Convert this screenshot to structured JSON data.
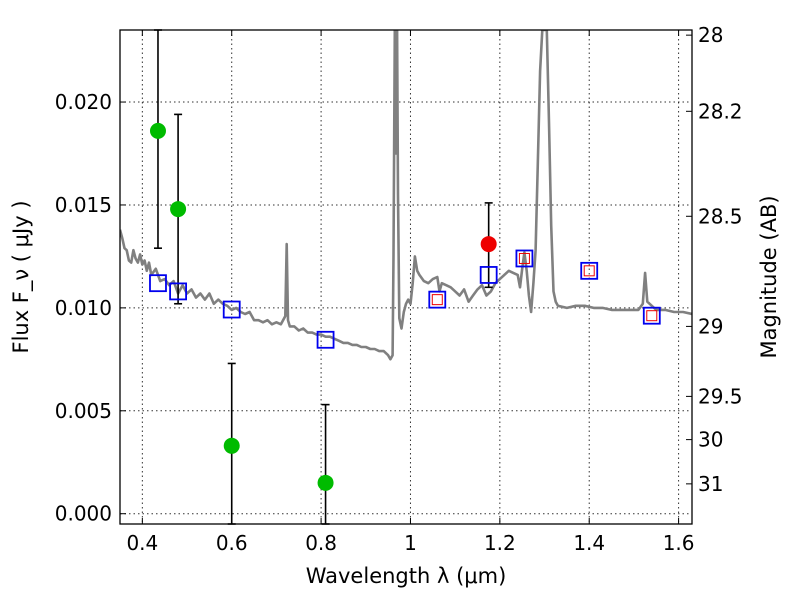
{
  "chart_data": {
    "type": "scatter",
    "xlabel": "Wavelength  λ (μm)",
    "ylabel": "Flux  F_ν  ( μJy )",
    "ylabel_right": "Magnitude (AB)",
    "xlim": [
      0.35,
      1.63
    ],
    "ylim": [
      -0.0005,
      0.0235
    ],
    "x_ticks": [
      0.4,
      0.6,
      0.8,
      1.0,
      1.2,
      1.4,
      1.6
    ],
    "x_tick_labels": [
      "0.4",
      "0.6",
      "0.8",
      "1",
      "1.2",
      "1.4",
      "1.6"
    ],
    "y_ticks": [
      0.0,
      0.005,
      0.01,
      0.015,
      0.02
    ],
    "y_tick_labels": [
      "0.000",
      "0.005",
      "0.010",
      "0.015",
      "0.020"
    ],
    "right_ticks": [
      {
        "flux": 0.02325,
        "label": "28"
      },
      {
        "flux": 0.01955,
        "label": "28.2"
      },
      {
        "flux": 0.01445,
        "label": "28.5"
      },
      {
        "flux": 0.0091,
        "label": "29"
      },
      {
        "flux": 0.0057,
        "label": "29.5"
      },
      {
        "flux": 0.0036,
        "label": "30"
      },
      {
        "flux": 0.00145,
        "label": "31"
      }
    ],
    "grid": true,
    "series": [
      {
        "name": "model-spectrum",
        "kind": "line",
        "color": "#808080",
        "points": [
          [
            0.35,
            0.0138
          ],
          [
            0.355,
            0.0134
          ],
          [
            0.36,
            0.0129
          ],
          [
            0.365,
            0.0128
          ],
          [
            0.37,
            0.0123
          ],
          [
            0.375,
            0.0122
          ],
          [
            0.38,
            0.0128
          ],
          [
            0.385,
            0.0124
          ],
          [
            0.39,
            0.0122
          ],
          [
            0.395,
            0.0126
          ],
          [
            0.4,
            0.0121
          ],
          [
            0.405,
            0.0123
          ],
          [
            0.41,
            0.0118
          ],
          [
            0.415,
            0.0122
          ],
          [
            0.42,
            0.0116
          ],
          [
            0.43,
            0.0119
          ],
          [
            0.44,
            0.0113
          ],
          [
            0.45,
            0.0114
          ],
          [
            0.46,
            0.0111
          ],
          [
            0.47,
            0.0113
          ],
          [
            0.48,
            0.0107
          ],
          [
            0.49,
            0.0111
          ],
          [
            0.5,
            0.0107
          ],
          [
            0.51,
            0.0109
          ],
          [
            0.52,
            0.0105
          ],
          [
            0.53,
            0.0107
          ],
          [
            0.54,
            0.0104
          ],
          [
            0.55,
            0.0107
          ],
          [
            0.56,
            0.0102
          ],
          [
            0.57,
            0.0104
          ],
          [
            0.58,
            0.0102
          ],
          [
            0.59,
            0.0101
          ],
          [
            0.6,
            0.0099
          ],
          [
            0.61,
            0.01
          ],
          [
            0.62,
            0.0098
          ],
          [
            0.63,
            0.0097
          ],
          [
            0.64,
            0.0098
          ],
          [
            0.65,
            0.0094
          ],
          [
            0.66,
            0.0094
          ],
          [
            0.67,
            0.0093
          ],
          [
            0.68,
            0.0094
          ],
          [
            0.69,
            0.0092
          ],
          [
            0.7,
            0.0093
          ],
          [
            0.71,
            0.0092
          ],
          [
            0.72,
            0.0096
          ],
          [
            0.723,
            0.0131
          ],
          [
            0.726,
            0.0094
          ],
          [
            0.73,
            0.0091
          ],
          [
            0.74,
            0.0091
          ],
          [
            0.75,
            0.0089
          ],
          [
            0.76,
            0.009
          ],
          [
            0.77,
            0.0088
          ],
          [
            0.78,
            0.0088
          ],
          [
            0.79,
            0.0087
          ],
          [
            0.8,
            0.0087
          ],
          [
            0.81,
            0.0086
          ],
          [
            0.82,
            0.0086
          ],
          [
            0.83,
            0.0085
          ],
          [
            0.84,
            0.0084
          ],
          [
            0.85,
            0.0083
          ],
          [
            0.86,
            0.0083
          ],
          [
            0.87,
            0.0082
          ],
          [
            0.88,
            0.0082
          ],
          [
            0.89,
            0.0081
          ],
          [
            0.9,
            0.0081
          ],
          [
            0.91,
            0.008
          ],
          [
            0.92,
            0.008
          ],
          [
            0.93,
            0.0079
          ],
          [
            0.94,
            0.0079
          ],
          [
            0.95,
            0.0077
          ],
          [
            0.955,
            0.0075
          ],
          [
            0.96,
            0.0077
          ],
          [
            0.962,
            0.0125
          ],
          [
            0.965,
            0.0235
          ],
          [
            0.968,
            0.0175
          ],
          [
            0.97,
            0.0235
          ],
          [
            0.972,
            0.0155
          ],
          [
            0.975,
            0.0095
          ],
          [
            0.98,
            0.009
          ],
          [
            0.985,
            0.0098
          ],
          [
            0.99,
            0.0102
          ],
          [
            0.995,
            0.0104
          ],
          [
            1.0,
            0.0102
          ],
          [
            1.005,
            0.0112
          ],
          [
            1.01,
            0.0125
          ],
          [
            1.015,
            0.0118
          ],
          [
            1.02,
            0.0116
          ],
          [
            1.03,
            0.0113
          ],
          [
            1.04,
            0.0112
          ],
          [
            1.05,
            0.0114
          ],
          [
            1.06,
            0.0115
          ],
          [
            1.065,
            0.0108
          ],
          [
            1.07,
            0.0112
          ],
          [
            1.08,
            0.0111
          ],
          [
            1.09,
            0.011
          ],
          [
            1.1,
            0.0108
          ],
          [
            1.11,
            0.0106
          ],
          [
            1.12,
            0.0109
          ],
          [
            1.13,
            0.0103
          ],
          [
            1.14,
            0.0106
          ],
          [
            1.15,
            0.0109
          ],
          [
            1.16,
            0.0111
          ],
          [
            1.17,
            0.0106
          ],
          [
            1.18,
            0.0108
          ],
          [
            1.19,
            0.0112
          ],
          [
            1.2,
            0.0114
          ],
          [
            1.21,
            0.0116
          ],
          [
            1.22,
            0.0118
          ],
          [
            1.23,
            0.0117
          ],
          [
            1.24,
            0.0116
          ],
          [
            1.245,
            0.011
          ],
          [
            1.25,
            0.0119
          ],
          [
            1.255,
            0.0127
          ],
          [
            1.26,
            0.0118
          ],
          [
            1.265,
            0.0106
          ],
          [
            1.27,
            0.0098
          ],
          [
            1.275,
            0.0112
          ],
          [
            1.28,
            0.0128
          ],
          [
            1.285,
            0.017
          ],
          [
            1.29,
            0.0215
          ],
          [
            1.295,
            0.0235
          ],
          [
            1.305,
            0.0235
          ],
          [
            1.31,
            0.019
          ],
          [
            1.315,
            0.014
          ],
          [
            1.32,
            0.0108
          ],
          [
            1.325,
            0.0103
          ],
          [
            1.33,
            0.0101
          ],
          [
            1.35,
            0.01
          ],
          [
            1.37,
            0.0101
          ],
          [
            1.39,
            0.0101
          ],
          [
            1.41,
            0.01
          ],
          [
            1.43,
            0.01
          ],
          [
            1.45,
            0.0099
          ],
          [
            1.47,
            0.0099
          ],
          [
            1.49,
            0.0099
          ],
          [
            1.51,
            0.0099
          ],
          [
            1.52,
            0.0102
          ],
          [
            1.525,
            0.0117
          ],
          [
            1.53,
            0.0103
          ],
          [
            1.55,
            0.0099
          ],
          [
            1.57,
            0.0099
          ],
          [
            1.59,
            0.0098
          ],
          [
            1.61,
            0.0098
          ],
          [
            1.63,
            0.0097
          ]
        ]
      },
      {
        "name": "model-band-fluxes",
        "kind": "open-square",
        "color": "#0000ee",
        "points": [
          [
            0.435,
            0.0112
          ],
          [
            0.48,
            0.0108
          ],
          [
            0.6,
            0.00992
          ],
          [
            0.81,
            0.00845
          ],
          [
            1.06,
            0.0104
          ],
          [
            1.175,
            0.0116
          ],
          [
            1.255,
            0.0124
          ],
          [
            1.4,
            0.0118
          ],
          [
            1.54,
            0.00962
          ]
        ]
      },
      {
        "name": "observed-ir-fluxes",
        "kind": "small-open-square",
        "color": "#ee0000",
        "points": [
          [
            1.06,
            0.0104
          ],
          [
            1.255,
            0.0124
          ],
          [
            1.4,
            0.0118
          ],
          [
            1.54,
            0.00962
          ]
        ]
      },
      {
        "name": "optical-detections",
        "kind": "circle",
        "color": "#00bb00",
        "points": [
          {
            "x": 0.435,
            "y": 0.0186,
            "yerr_low": 0.0129,
            "yerr_high": 0.0235
          },
          {
            "x": 0.48,
            "y": 0.0148,
            "yerr_low": 0.0102,
            "yerr_high": 0.0194
          },
          {
            "x": 0.6,
            "y": 0.0033,
            "yerr_low": -0.0005,
            "yerr_high": 0.0073
          },
          {
            "x": 0.81,
            "y": 0.0015,
            "yerr_low": -0.0005,
            "yerr_high": 0.0053
          }
        ]
      },
      {
        "name": "ir-detection",
        "kind": "circle",
        "color": "#ee0000",
        "points": [
          {
            "x": 1.175,
            "y": 0.0131,
            "yerr_low": 0.011,
            "yerr_high": 0.0151
          }
        ]
      }
    ]
  }
}
